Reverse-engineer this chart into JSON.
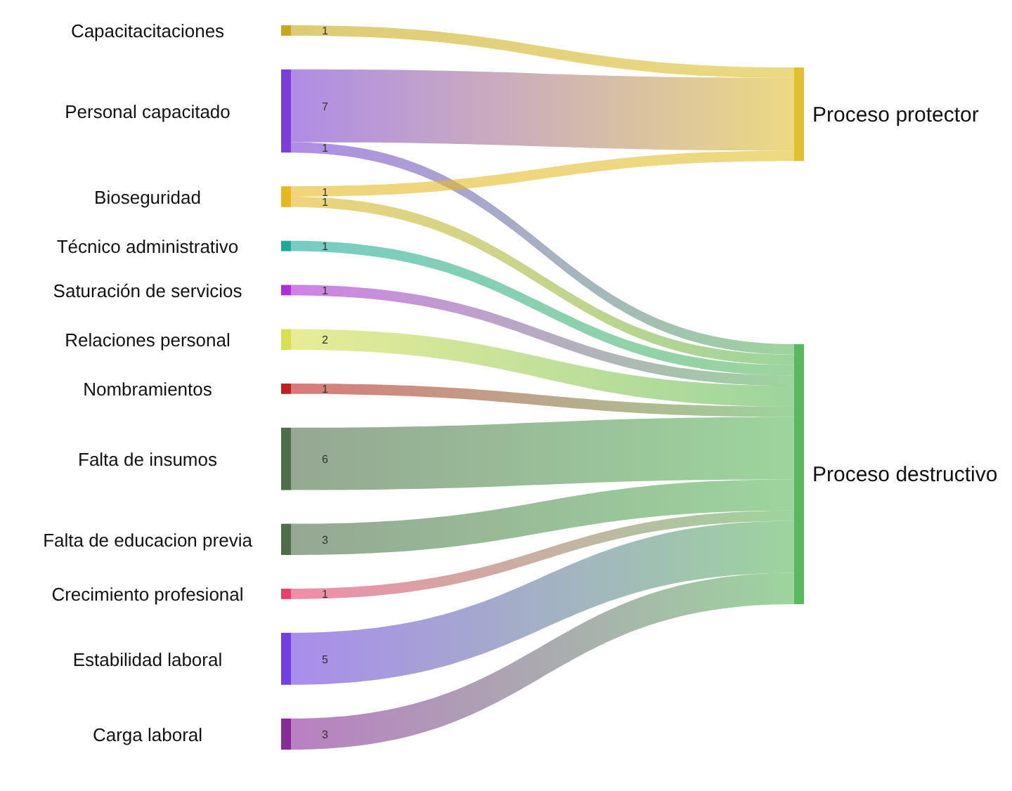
{
  "chart_data": {
    "type": "other",
    "data_labels": true,
    "categories": [
      "Capacitacitaciones",
      "Personal capacitado",
      "Bioseguridad",
      "Técnico administrativo",
      "Saturación de servicios",
      "Relaciones personal",
      "Nombramientos",
      "Falta de insumos",
      "Falta de educacion previa",
      "Crecimiento profesional",
      "Estabilidad laboral",
      "Carga laboral"
    ],
    "colors": [
      "#c8a81a",
      "#7b3fd6",
      "#e6b820",
      "#1aab9b",
      "#b02ed6",
      "#d8e050",
      "#c0201e",
      "#4e6e4a",
      "#4e6e4a",
      "#e8406a",
      "#7040e0",
      "#8a2a9a"
    ],
    "series": [
      {
        "name": "Proceso protector",
        "color": "#e0c030",
        "values": [
          1,
          7,
          1,
          null,
          null,
          null,
          null,
          null,
          null,
          null,
          null,
          null
        ]
      },
      {
        "name": "Proceso destructivo",
        "color": "#5cb85c",
        "values": [
          null,
          1,
          1,
          1,
          1,
          2,
          1,
          6,
          3,
          1,
          5,
          3
        ]
      }
    ]
  }
}
